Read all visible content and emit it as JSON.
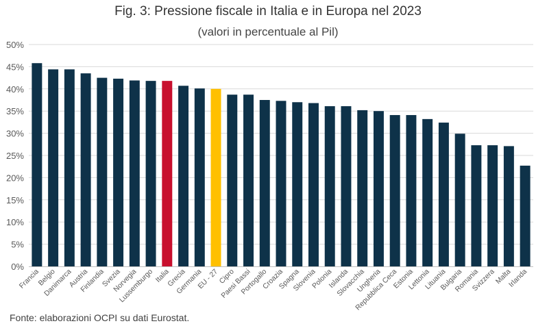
{
  "chart_data": {
    "type": "bar",
    "title": "Fig. 3: Pressione fiscale in Italia e in Europa nel 2023",
    "subtitle": "(valori in percentuale al Pil)",
    "source": "Fonte: elaborazioni OCPI su dati Eurostat.",
    "ylim": [
      0,
      50
    ],
    "yticks": [
      "0%",
      "5%",
      "10%",
      "15%",
      "20%",
      "25%",
      "30%",
      "35%",
      "40%",
      "45%",
      "50%"
    ],
    "grid": true,
    "categories": [
      "Francia",
      "Belgio",
      "Danimarca",
      "Austria",
      "Finlandia",
      "Svezia",
      "Norvegia",
      "Lussemburgo",
      "Italia",
      "Grecia",
      "Germania",
      "EU - 27",
      "Cipro",
      "Paesi Bassi",
      "Portogallo",
      "Croazia",
      "Spagna",
      "Slovenia",
      "Polonia",
      "Islanda",
      "Slovacchia",
      "Ungheria",
      "Repubblica Ceca",
      "Estonia",
      "Lettonia",
      "Lituania",
      "Bulgaria",
      "Romania",
      "Svizzera",
      "Malta",
      "Irlanda"
    ],
    "values": [
      45.8,
      44.4,
      44.4,
      43.5,
      42.5,
      42.3,
      41.9,
      41.8,
      41.8,
      40.7,
      40.1,
      40.0,
      38.7,
      38.7,
      37.5,
      37.3,
      37.0,
      36.8,
      36.1,
      36.1,
      35.2,
      35.0,
      34.1,
      34.1,
      33.2,
      32.4,
      29.9,
      27.3,
      27.3,
      27.1,
      22.7
    ],
    "colors": {
      "default": "#0e3249",
      "Italia": "#c8102e",
      "EU - 27": "#ffc000",
      "grid": "#d9d9d9",
      "axis": "#bfbfbf",
      "text": "#595959"
    }
  }
}
